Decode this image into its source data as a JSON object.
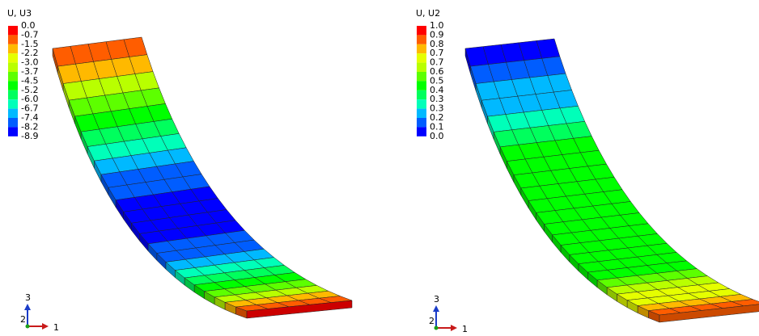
{
  "legend_colors": [
    "#ff0000",
    "#ff5d00",
    "#ffb900",
    "#e5ff00",
    "#b9ff00",
    "#5dff00",
    "#00ff00",
    "#00ff5d",
    "#00ffb9",
    "#00b9ff",
    "#005dff",
    "#0000ff"
  ],
  "panels": [
    {
      "legend_title": "U, U3",
      "legend_labels": [
        "0.0",
        "-0.7",
        "-1.5",
        "-2.2",
        "-3.0",
        "-3.7",
        "-4.5",
        "-5.2",
        "-6.0",
        "-6.7",
        "-7.4",
        "-8.2",
        "-8.9"
      ],
      "triad": {
        "up": "3",
        "depth": "2",
        "right": "1"
      }
    },
    {
      "legend_title": "U, U2",
      "legend_labels": [
        "1.0",
        "0.9",
        "0.8",
        "0.7",
        "0.7",
        "0.6",
        "0.5",
        "0.4",
        "0.3",
        "0.3",
        "0.2",
        "0.1",
        "0.0"
      ],
      "triad": {
        "up": "3",
        "depth": "2",
        "right": "1"
      }
    }
  ]
}
